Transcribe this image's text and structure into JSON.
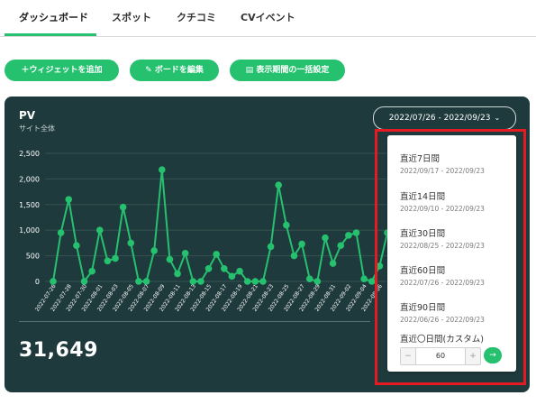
{
  "tabs": [
    {
      "label": "ダッシュボード"
    },
    {
      "label": "スポット"
    },
    {
      "label": "クチコミ"
    },
    {
      "label": "CVイベント"
    }
  ],
  "toolbar": {
    "add_widget": "＋ウィジェットを追加",
    "edit_board": "ボードを編集",
    "period_settings": "表示期間の一括設定"
  },
  "card": {
    "title": "PV",
    "subtitle": "サイト全体",
    "date_range": "2022/07/26 - 2022/09/23",
    "total": "31,649"
  },
  "dropdown": {
    "options": [
      {
        "label": "直近7日間",
        "range": "2022/09/17 - 2022/09/23"
      },
      {
        "label": "直近14日間",
        "range": "2022/09/10 - 2022/09/23"
      },
      {
        "label": "直近30日間",
        "range": "2022/08/25 - 2022/09/23"
      },
      {
        "label": "直近60日間",
        "range": "2022/07/26 - 2022/09/23"
      },
      {
        "label": "直近90日間",
        "range": "2022/06/26 - 2022/09/23"
      }
    ],
    "custom_label": "直近〇日間(カスタム)",
    "custom_value": "60",
    "minus": "−",
    "plus": "+",
    "go": "→"
  },
  "colors": {
    "accent": "#25c16f",
    "card_bg": "#1f3a3d",
    "highlight": "#e51b24"
  },
  "chart_data": {
    "type": "line",
    "yticks": [
      "0",
      "500",
      "1,000",
      "1,500",
      "2,000",
      "2,500"
    ],
    "ylim": [
      0,
      2500
    ],
    "x": [
      "2022-07-26",
      "2022-07-27",
      "2022-07-28",
      "2022-07-29",
      "2022-07-30",
      "2022-07-31",
      "2022-08-01",
      "2022-08-02",
      "2022-08-03",
      "2022-08-04",
      "2022-08-05",
      "2022-08-06",
      "2022-08-07",
      "2022-08-08",
      "2022-08-09",
      "2022-08-10",
      "2022-08-11",
      "2022-08-12",
      "2022-08-13",
      "2022-08-14",
      "2022-08-15",
      "2022-08-16",
      "2022-08-17",
      "2022-08-18",
      "2022-08-19",
      "2022-08-20",
      "2022-08-21",
      "2022-08-22",
      "2022-08-23",
      "2022-08-24",
      "2022-08-25",
      "2022-08-26",
      "2022-08-27",
      "2022-08-28",
      "2022-08-29",
      "2022-08-30",
      "2022-08-31",
      "2022-09-01",
      "2022-09-02",
      "2022-09-03",
      "2022-09-04",
      "2022-09-05",
      "2022-09-06",
      "2022-09-07"
    ],
    "xtick_labels": [
      "2022-07-26",
      "2022-07-28",
      "2022-07-30",
      "2022-08-01",
      "2022-08-03",
      "2022-08-05",
      "2022-08-07",
      "2022-08-09",
      "2022-08-11",
      "2022-08-13",
      "2022-08-15",
      "2022-08-17",
      "2022-08-19",
      "2022-08-21",
      "2022-08-23",
      "2022-08-25",
      "2022-08-27",
      "2022-08-29",
      "2022-08-31",
      "2022-09-02",
      "2022-09-04",
      "2022-09-06"
    ],
    "values": [
      0,
      950,
      1600,
      700,
      0,
      200,
      1000,
      400,
      450,
      1450,
      750,
      0,
      0,
      600,
      2180,
      430,
      150,
      550,
      0,
      0,
      250,
      530,
      250,
      100,
      200,
      0,
      0,
      0,
      680,
      1880,
      1100,
      500,
      730,
      50,
      0,
      850,
      350,
      700,
      900,
      950,
      50,
      0,
      300,
      950
    ]
  }
}
